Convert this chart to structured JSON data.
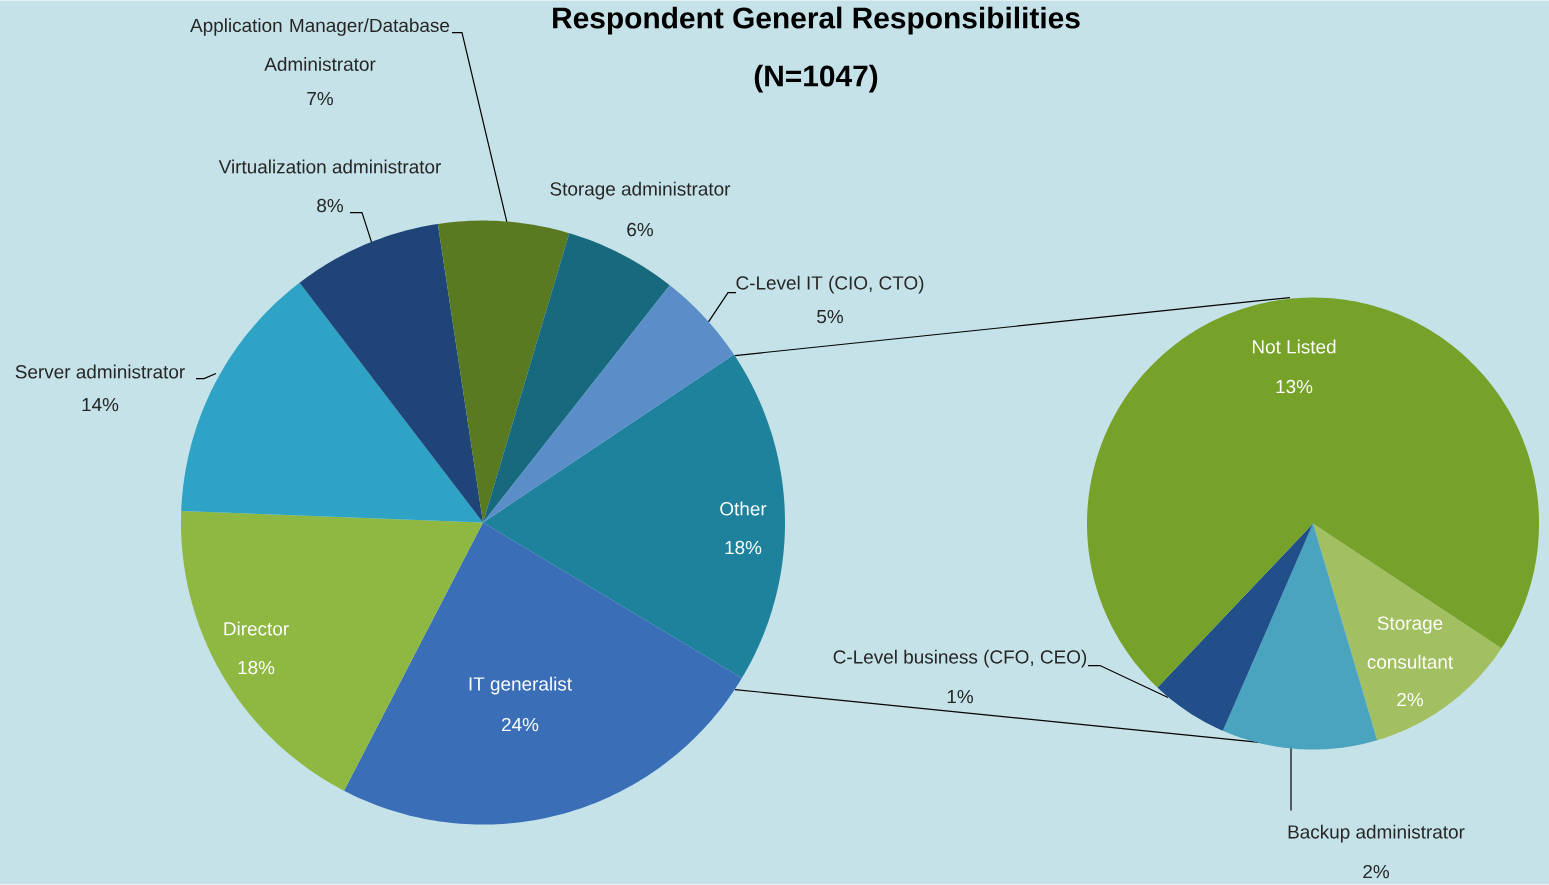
{
  "chart_data": [
    {
      "type": "pie",
      "title": "Respondent General Responsibilities",
      "subtitle": "(N=1047)",
      "categories": [
        "Other",
        "IT generalist",
        "Director",
        "Server administrator",
        "Virtualization administrator",
        "Application Manager/Database Administrator",
        "Storage administrator",
        "C-Level IT (CIO, CTO)"
      ],
      "values": [
        18,
        24,
        18,
        14,
        8,
        7,
        6,
        5
      ],
      "value_labels": [
        "18%",
        "24%",
        "18%",
        "14%",
        "8%",
        "7%",
        "6%",
        "5%"
      ],
      "colors": [
        "#1f829c",
        "#3a6fb8",
        "#8fb843",
        "#2ea3c6",
        "#1e4478",
        "#5a7a22",
        "#176a7e",
        "#5b8dc9"
      ]
    },
    {
      "type": "pie",
      "categories": [
        "Storage consultant",
        "Backup administrator",
        "C-Level business (CFO, CEO)",
        "Not Listed"
      ],
      "values": [
        2,
        2,
        1,
        13
      ],
      "value_labels": [
        "2%",
        "2%",
        "1%",
        "13%"
      ],
      "colors": [
        "#a2c061",
        "#4aa3bf",
        "#214f8a",
        "#76a22a"
      ]
    }
  ]
}
